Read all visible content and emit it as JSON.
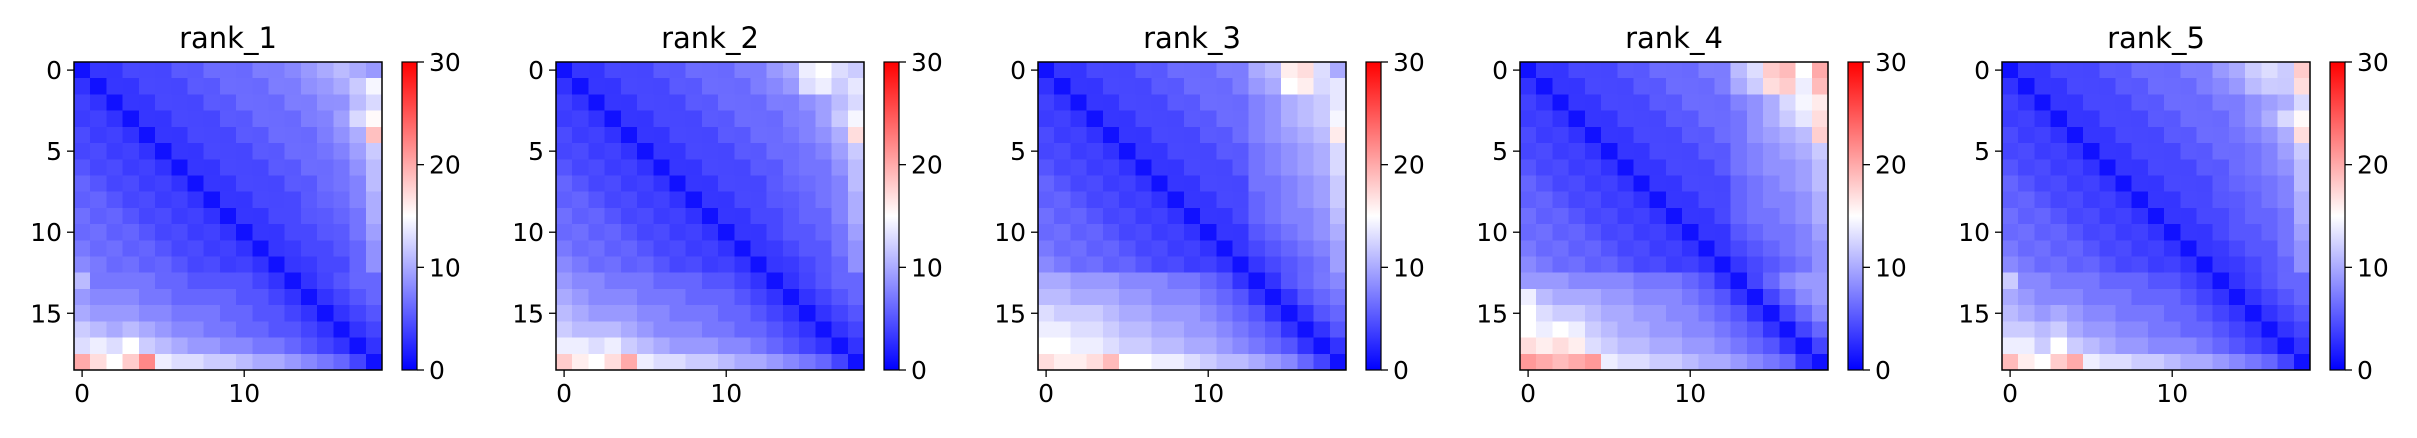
{
  "chart_data": [
    {
      "type": "heatmap",
      "title": "rank_1",
      "size": 19,
      "vmin": 0,
      "vmax": 30,
      "colormap": "bwr",
      "x_ticks": [
        0,
        10
      ],
      "y_ticks": [
        0,
        5,
        10,
        15
      ],
      "colorbar_ticks": [
        0,
        10,
        20,
        30
      ],
      "bottom_rows": [
        {
          "row": 18,
          "values": [
            20,
            17,
            15,
            18,
            22,
            14,
            13,
            13,
            12,
            12,
            11,
            10,
            10,
            9,
            8,
            7,
            6,
            4,
            1
          ]
        },
        {
          "row": 17,
          "values": [
            13,
            14,
            13,
            15,
            12,
            11,
            10,
            9,
            9,
            8,
            8,
            7,
            7,
            6,
            5,
            4,
            3,
            1,
            3
          ]
        },
        {
          "row": 16,
          "values": [
            12,
            11,
            10,
            11,
            10,
            9,
            8,
            8,
            7,
            7,
            6,
            6,
            5,
            5,
            4,
            3,
            1,
            3,
            4
          ]
        },
        {
          "row": 15,
          "values": [
            10,
            9,
            9,
            9,
            8,
            8,
            7,
            7,
            7,
            6,
            6,
            5,
            5,
            4,
            3,
            1,
            3,
            4,
            5
          ]
        },
        {
          "row": 14,
          "values": [
            9,
            8,
            8,
            8,
            7,
            7,
            6,
            6,
            6,
            6,
            5,
            5,
            4,
            3,
            1,
            3,
            4,
            5,
            6
          ]
        },
        {
          "row": 13,
          "values": [
            11,
            7,
            7,
            7,
            7,
            6,
            6,
            5,
            5,
            5,
            5,
            4,
            3,
            1,
            3,
            4,
            5,
            6,
            6
          ]
        }
      ],
      "top_right": {
        "row0_col13_to_18": [
          8,
          9,
          10,
          11,
          10,
          9
        ]
      }
    },
    {
      "type": "heatmap",
      "title": "rank_2",
      "size": 19,
      "vmin": 0,
      "vmax": 30,
      "colormap": "bwr",
      "x_ticks": [
        0,
        10
      ],
      "y_ticks": [
        0,
        5,
        10,
        15
      ],
      "colorbar_ticks": [
        0,
        10,
        20,
        30
      ],
      "bottom_rows": [
        {
          "row": 18,
          "values": [
            18,
            16,
            15,
            17,
            20,
            14,
            13,
            13,
            12,
            12,
            11,
            10,
            10,
            9,
            8,
            7,
            6,
            4,
            1
          ]
        },
        {
          "row": 17,
          "values": [
            14,
            14,
            13,
            14,
            12,
            11,
            10,
            9,
            9,
            9,
            8,
            8,
            7,
            6,
            5,
            4,
            3,
            1,
            3
          ]
        },
        {
          "row": 16,
          "values": [
            12,
            11,
            11,
            11,
            10,
            9,
            8,
            8,
            8,
            7,
            7,
            6,
            6,
            5,
            4,
            3,
            1,
            3,
            4
          ]
        },
        {
          "row": 15,
          "values": [
            11,
            10,
            9,
            9,
            9,
            8,
            8,
            7,
            7,
            7,
            6,
            6,
            5,
            4,
            3,
            1,
            3,
            4,
            5
          ]
        },
        {
          "row": 14,
          "values": [
            10,
            9,
            8,
            8,
            8,
            7,
            7,
            7,
            6,
            6,
            6,
            5,
            4,
            3,
            1,
            3,
            4,
            5,
            6
          ]
        },
        {
          "row": 13,
          "values": [
            9,
            8,
            8,
            7,
            7,
            7,
            6,
            6,
            6,
            5,
            5,
            4,
            3,
            1,
            3,
            4,
            5,
            6,
            6
          ]
        }
      ],
      "top_right": {
        "row0_col13_to_18": [
          9,
          10,
          14,
          15,
          13,
          12
        ]
      }
    },
    {
      "type": "heatmap",
      "title": "rank_3",
      "size": 19,
      "vmin": 0,
      "vmax": 30,
      "colormap": "bwr",
      "x_ticks": [
        0,
        10
      ],
      "y_ticks": [
        0,
        5,
        10,
        15
      ],
      "colorbar_ticks": [
        0,
        10,
        20,
        30
      ],
      "bottom_rows": [
        {
          "row": 18,
          "values": [
            17,
            16,
            16,
            17,
            19,
            15,
            15,
            14,
            14,
            13,
            12,
            11,
            11,
            10,
            9,
            8,
            6,
            4,
            1
          ]
        },
        {
          "row": 17,
          "values": [
            15,
            15,
            14,
            14,
            13,
            12,
            12,
            11,
            11,
            10,
            10,
            9,
            8,
            7,
            6,
            5,
            3,
            1,
            3
          ]
        },
        {
          "row": 16,
          "values": [
            14,
            14,
            13,
            13,
            12,
            11,
            11,
            10,
            10,
            9,
            9,
            8,
            7,
            6,
            5,
            3,
            1,
            3,
            5
          ]
        },
        {
          "row": 15,
          "values": [
            13,
            12,
            12,
            12,
            11,
            10,
            10,
            9,
            9,
            9,
            8,
            7,
            6,
            5,
            3,
            1,
            3,
            5,
            6
          ]
        },
        {
          "row": 14,
          "values": [
            11,
            11,
            10,
            10,
            10,
            9,
            9,
            8,
            8,
            8,
            7,
            6,
            5,
            3,
            1,
            3,
            5,
            6,
            7
          ]
        },
        {
          "row": 13,
          "values": [
            10,
            10,
            9,
            9,
            9,
            8,
            8,
            8,
            7,
            7,
            6,
            5,
            3,
            1,
            3,
            5,
            6,
            7,
            8
          ]
        }
      ],
      "top_right": {
        "row0_col13_to_18": [
          10,
          11,
          16,
          17,
          13,
          10
        ]
      }
    },
    {
      "type": "heatmap",
      "title": "rank_4",
      "size": 19,
      "vmin": 0,
      "vmax": 30,
      "colormap": "bwr",
      "x_ticks": [
        0,
        10
      ],
      "y_ticks": [
        0,
        5,
        10,
        15
      ],
      "colorbar_ticks": [
        0,
        10,
        20,
        30
      ],
      "bottom_rows": [
        {
          "row": 18,
          "values": [
            21,
            20,
            19,
            20,
            21,
            14,
            13,
            13,
            12,
            12,
            11,
            10,
            10,
            9,
            8,
            7,
            6,
            3,
            1
          ]
        },
        {
          "row": 17,
          "values": [
            17,
            16,
            17,
            16,
            13,
            12,
            11,
            11,
            10,
            10,
            9,
            9,
            8,
            7,
            6,
            5,
            3,
            1,
            4
          ]
        },
        {
          "row": 16,
          "values": [
            15,
            14,
            15,
            14,
            12,
            11,
            10,
            10,
            9,
            9,
            8,
            8,
            7,
            6,
            5,
            3,
            1,
            4,
            6
          ]
        },
        {
          "row": 15,
          "values": [
            15,
            13,
            12,
            12,
            11,
            10,
            10,
            9,
            9,
            8,
            8,
            7,
            6,
            5,
            3,
            1,
            4,
            6,
            8
          ]
        },
        {
          "row": 14,
          "values": [
            14,
            11,
            10,
            10,
            10,
            9,
            9,
            8,
            8,
            8,
            7,
            6,
            5,
            3,
            1,
            4,
            6,
            8,
            9
          ]
        },
        {
          "row": 13,
          "values": [
            9,
            9,
            9,
            8,
            8,
            8,
            8,
            7,
            7,
            7,
            6,
            5,
            3,
            1,
            4,
            6,
            8,
            9,
            9
          ]
        }
      ],
      "top_right": {
        "row0_col13_to_18": [
          11,
          13,
          18,
          19,
          15,
          20
        ]
      }
    },
    {
      "type": "heatmap",
      "title": "rank_5",
      "size": 19,
      "vmin": 0,
      "vmax": 30,
      "colormap": "bwr",
      "x_ticks": [
        0,
        10
      ],
      "y_ticks": [
        0,
        5,
        10,
        15
      ],
      "colorbar_ticks": [
        0,
        10,
        20,
        30
      ],
      "bottom_rows": [
        {
          "row": 18,
          "values": [
            19,
            16,
            15,
            18,
            20,
            14,
            13,
            13,
            12,
            12,
            11,
            10,
            10,
            9,
            8,
            7,
            6,
            4,
            1
          ]
        },
        {
          "row": 17,
          "values": [
            14,
            14,
            12,
            15,
            12,
            11,
            10,
            9,
            9,
            8,
            8,
            8,
            7,
            6,
            5,
            4,
            3,
            1,
            3
          ]
        },
        {
          "row": 16,
          "values": [
            12,
            12,
            11,
            12,
            10,
            9,
            9,
            8,
            8,
            7,
            7,
            6,
            6,
            5,
            4,
            3,
            1,
            3,
            4
          ]
        },
        {
          "row": 15,
          "values": [
            11,
            10,
            9,
            10,
            9,
            8,
            8,
            7,
            7,
            7,
            6,
            6,
            5,
            4,
            3,
            1,
            3,
            4,
            5
          ]
        },
        {
          "row": 14,
          "values": [
            10,
            9,
            8,
            8,
            8,
            7,
            7,
            7,
            6,
            6,
            6,
            5,
            4,
            3,
            1,
            3,
            4,
            5,
            6
          ]
        },
        {
          "row": 13,
          "values": [
            12,
            8,
            8,
            7,
            7,
            7,
            6,
            6,
            6,
            5,
            5,
            4,
            3,
            1,
            3,
            4,
            5,
            6,
            6
          ]
        }
      ],
      "top_right": {
        "row0_col13_to_18": [
          9,
          10,
          12,
          13,
          12,
          18
        ]
      }
    }
  ]
}
